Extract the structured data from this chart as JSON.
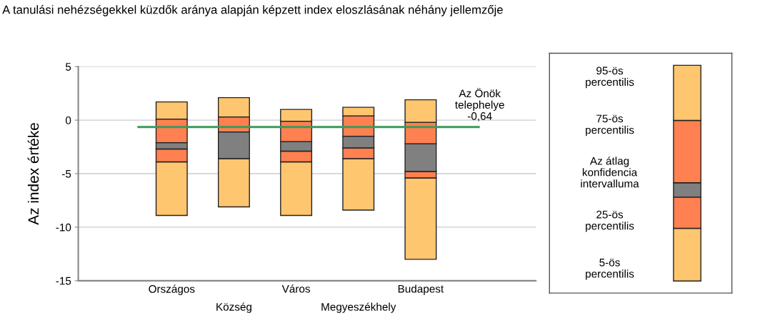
{
  "chart_data": {
    "type": "bar",
    "title": "A tanulási nehézségekkel küzdők aránya alapján képzett index eloszlásának néhány jellemzője",
    "ylabel": "Az index értéke",
    "categories": [
      "Országos",
      "Község",
      "Város",
      "Megyeszékhely",
      "Budapest"
    ],
    "series": [
      {
        "color": "#ffc670",
        "base": [
          -8.9,
          -8.1,
          -8.9,
          -8.4,
          -13.0
        ],
        "values": [
          5.0,
          4.5,
          5.0,
          4.8,
          7.6
        ]
      },
      {
        "color": "#ff8050",
        "base": [
          -3.9,
          null,
          -3.9,
          -3.6,
          -5.4
        ],
        "values": [
          1.2,
          null,
          1.0,
          1.0,
          0.6
        ]
      },
      {
        "color": "#808080",
        "base": [
          -2.7,
          -3.6,
          -2.9,
          -2.6,
          -4.8
        ],
        "values": [
          0.6,
          2.5,
          0.9,
          1.1,
          2.6
        ]
      },
      {
        "color": "#ff8050",
        "base": [
          -2.1,
          -1.1,
          -2.0,
          -1.5,
          -2.2
        ],
        "values": [
          2.2,
          1.4,
          1.9,
          1.9,
          2.0
        ]
      },
      {
        "color": "#ffc670",
        "base": [
          0.1,
          0.3,
          -0.1,
          0.4,
          -0.2
        ],
        "values": [
          1.6,
          1.8,
          1.1,
          0.8,
          2.1
        ]
      }
    ],
    "ylim": [
      -15,
      5
    ],
    "yticks": [
      {
        "value": -15,
        "label": "-15"
      },
      {
        "value": -10,
        "label": "-10"
      },
      {
        "value": -5,
        "label": "-5"
      },
      0,
      5
    ],
    "grid": "y",
    "legend": false,
    "ref_lines": [
      {
        "axis": "y",
        "value": -0.64,
        "label": "Az Önök\ntelephelye\n-0,64",
        "color": "#3a9a5a"
      }
    ],
    "annotations": [
      "95-ös\npercentilis",
      "75-ös\npercentilis",
      "Az átlag\nkonfidencia\nintervalluma",
      "25-ös\npercentilis",
      "5-ös\npercentilis"
    ]
  }
}
